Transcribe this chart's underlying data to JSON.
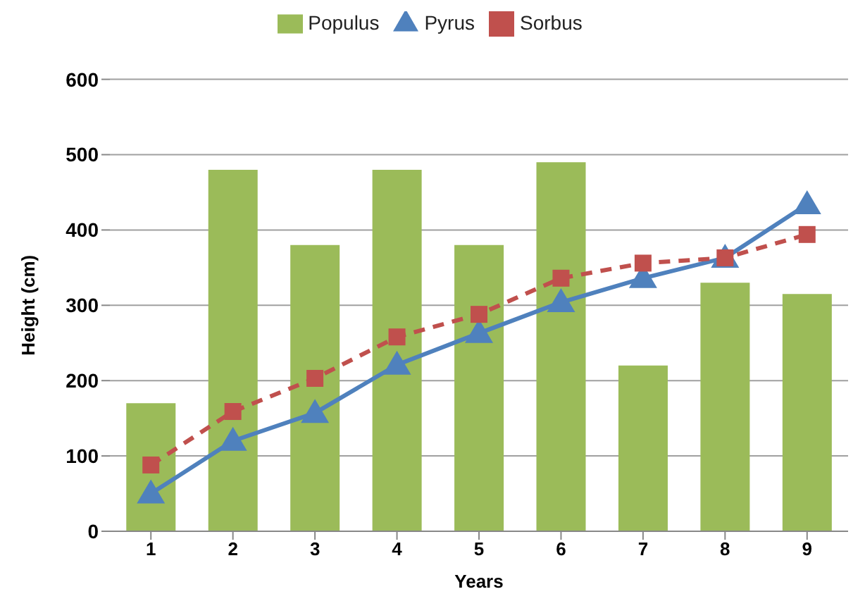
{
  "chart_data": {
    "type": "bar",
    "xlabel": "Years",
    "ylabel": "Height (cm)",
    "categories": [
      "1",
      "2",
      "3",
      "4",
      "5",
      "6",
      "7",
      "8",
      "9"
    ],
    "series": [
      {
        "name": "Populus",
        "color": "#9bbb59",
        "values": [
          170,
          480,
          380,
          480,
          380,
          490,
          220,
          330,
          315
        ]
      },
      {
        "name": "Pyrus",
        "type": "line",
        "color": "#4f81bd",
        "marker": "triangle",
        "line_style": "solid",
        "values": [
          50,
          120,
          157,
          221,
          263,
          304,
          336,
          363,
          434
        ]
      },
      {
        "name": "Sorbus",
        "type": "line",
        "color": "#c0504d",
        "marker": "square",
        "line_style": "dashed",
        "values": [
          88,
          159,
          203,
          258,
          288,
          336,
          356,
          363,
          394
        ]
      }
    ],
    "ylim": [
      0,
      600
    ],
    "yticks": [
      0,
      100,
      200,
      300,
      400,
      500,
      600
    ],
    "grid": "y",
    "legend": "top"
  }
}
